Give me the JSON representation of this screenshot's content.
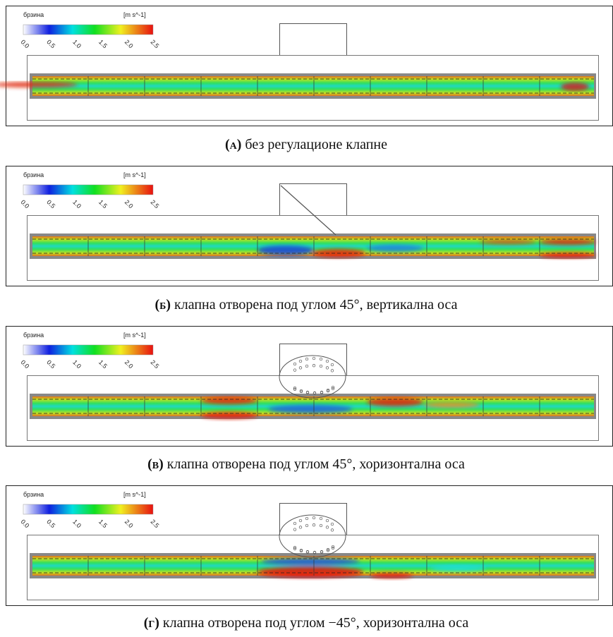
{
  "panels": [
    {
      "legend": {
        "title": "брзина",
        "unit": "[m s^-1]",
        "ticks": [
          "0.0",
          "0.5",
          "1.0",
          "1.5",
          "2.0",
          "2.5"
        ]
      },
      "caption": {
        "label": "(а)",
        "text": "без регулационе клапне"
      }
    },
    {
      "legend": {
        "title": "брзина",
        "unit": "[m s^-1]",
        "ticks": [
          "0.0",
          "0.5",
          "1.0",
          "1.5",
          "2.0",
          "2.5"
        ]
      },
      "caption": {
        "label": "(б)",
        "text": "клапна отворена под углом 45°, вертикална оса"
      }
    },
    {
      "legend": {
        "title": "брзина",
        "unit": "[m s^-1]",
        "ticks": [
          "0.0",
          "0.5",
          "1.0",
          "1.5",
          "2.0",
          "2.5"
        ]
      },
      "caption": {
        "label": "(в)",
        "text": "клапна отворена под углом 45°, хоризонтална оса"
      }
    },
    {
      "legend": {
        "title": "брзина",
        "unit": "[m s^-1]",
        "ticks": [
          "0.0",
          "0.5",
          "1.0",
          "1.5",
          "2.0",
          "2.5"
        ]
      },
      "caption": {
        "label": "(г)",
        "text": "клапна отворена под углом −45°, хоризонтална оса"
      }
    }
  ]
}
